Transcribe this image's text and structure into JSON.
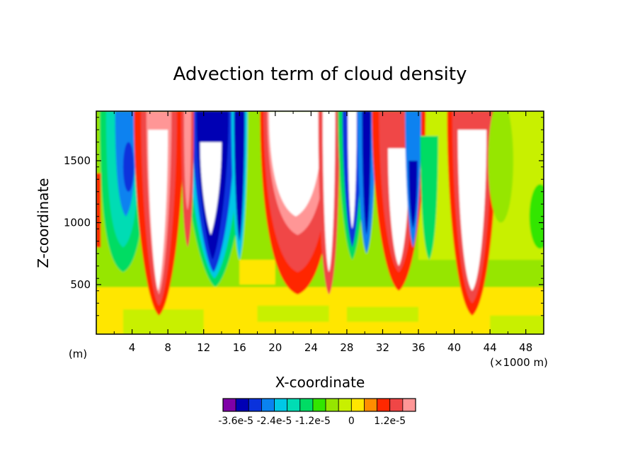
{
  "chart_data": {
    "type": "heatmap",
    "title": "Advection term of cloud density",
    "xlabel": "X-coordinate",
    "ylabel": "Z-coordinate",
    "x_unit_left": "(m)",
    "x_unit_right": "(×1000 m)",
    "xlim": [
      0,
      50
    ],
    "ylim": [
      100,
      1900
    ],
    "xticks": [
      4,
      8,
      12,
      16,
      20,
      24,
      28,
      32,
      36,
      40,
      44,
      48
    ],
    "yticks": [
      500,
      1000,
      1500
    ],
    "colorbar": {
      "levels": [
        -3.6e-05,
        -3.2e-05,
        -2.8e-05,
        -2.4e-05,
        -2e-05,
        -1.6e-05,
        -1.2e-05,
        -8e-06,
        -4e-06,
        0,
        4e-06,
        8e-06,
        1.2e-05,
        1.6e-05
      ],
      "colors": [
        "#7f00a8",
        "#0000b4",
        "#0a32dc",
        "#0a82f0",
        "#00c8e6",
        "#00dcb4",
        "#00dc64",
        "#32e600",
        "#96e600",
        "#c8f000",
        "#ffe600",
        "#ff8c00",
        "#ff2800",
        "#f04646",
        "#ff9696"
      ],
      "labels": [
        "-3.6e-5",
        "-2.4e-5",
        "-1.2e-5",
        "0",
        "1.2e-5"
      ]
    },
    "features": [
      {
        "kind": "updraft",
        "x": 7,
        "zbottom": 250,
        "ztop": 1900,
        "sign": "positive"
      },
      {
        "kind": "downdraft",
        "x": 13,
        "zbottom": 550,
        "ztop": 1900,
        "sign": "negative"
      },
      {
        "kind": "updraft",
        "x": 22.5,
        "zbottom": 800,
        "ztop": 1900,
        "sign": "positive"
      },
      {
        "kind": "downdraft",
        "x": 28.5,
        "zbottom": 900,
        "ztop": 1900,
        "sign": "negative"
      },
      {
        "kind": "updraft",
        "x": 34,
        "zbottom": 500,
        "ztop": 1900,
        "sign": "positive"
      },
      {
        "kind": "updraft",
        "x": 42,
        "zbottom": 250,
        "ztop": 1900,
        "sign": "positive"
      }
    ]
  }
}
